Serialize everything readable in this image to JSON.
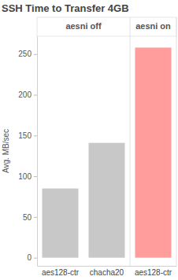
{
  "chart_data": {
    "type": "bar",
    "title": "SSH Time to Transfer 4GB",
    "y_label": "Avg. MB/sec",
    "series": [
      {
        "name": "aesni off",
        "color": "#c8c8c8",
        "categories": [
          "aes128-ctr",
          "chacha20"
        ],
        "values": [
          85,
          141
        ]
      },
      {
        "name": "aesni on",
        "color": "#ff9d9d",
        "categories": [
          "aes128-ctr"
        ],
        "values": [
          258
        ]
      }
    ],
    "ylim": [
      -10,
      272
    ],
    "yticks": [
      0,
      50,
      100,
      150,
      200,
      250
    ],
    "grid": false
  }
}
